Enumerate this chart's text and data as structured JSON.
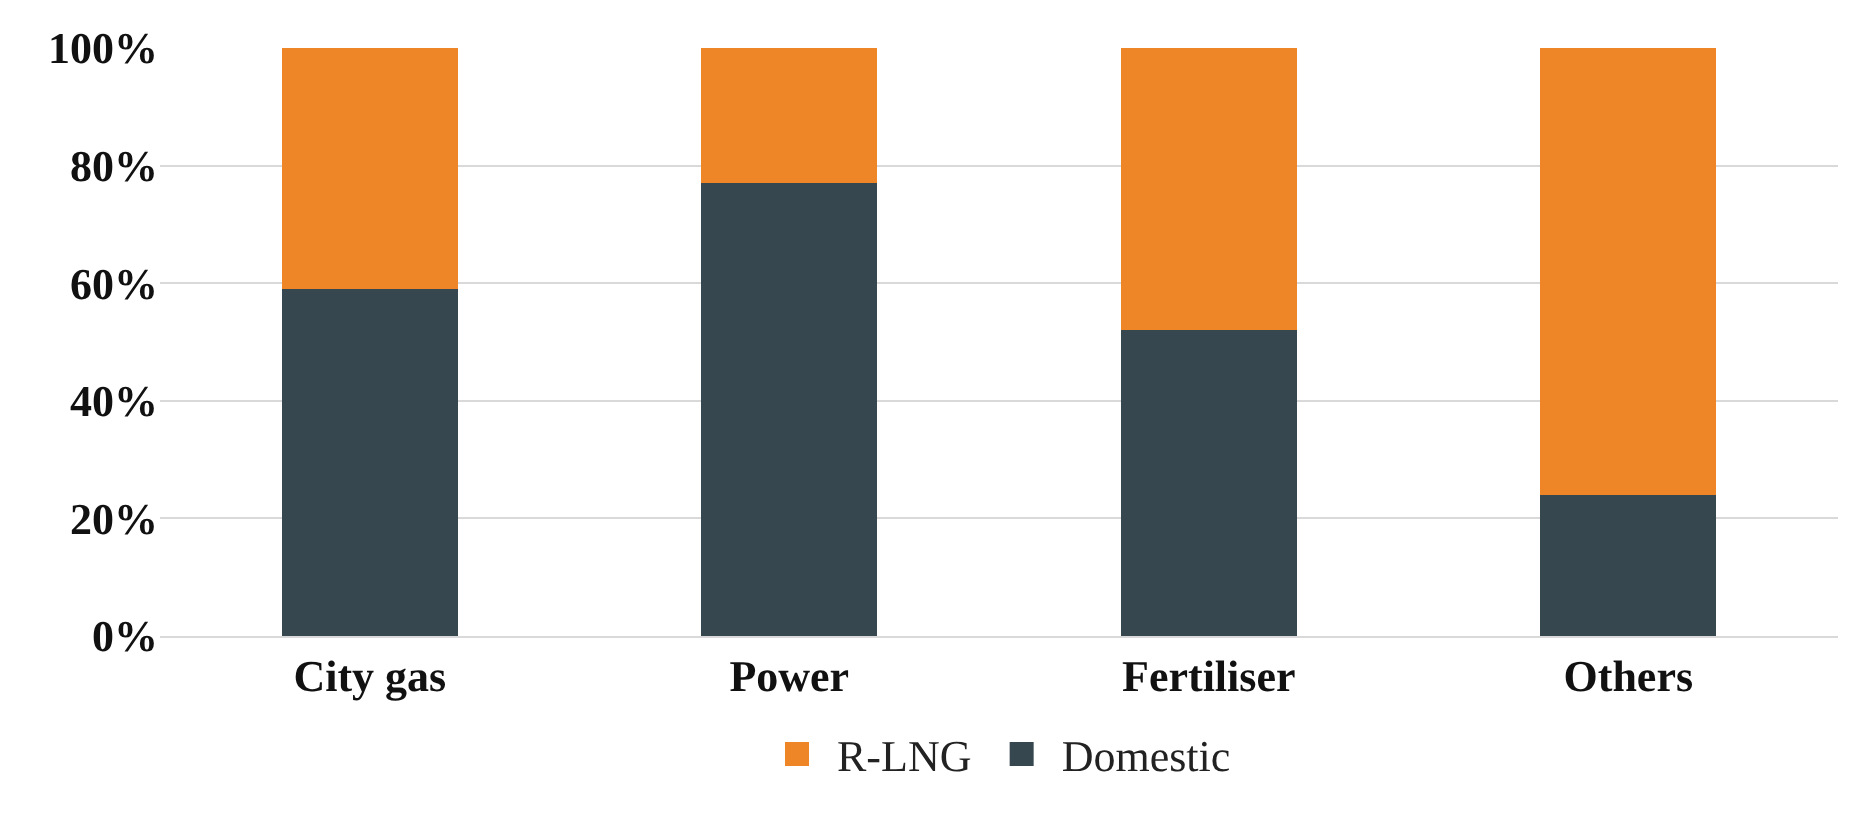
{
  "chart_data": {
    "type": "bar",
    "stacked": true,
    "categories": [
      "City gas",
      "Power",
      "Fertiliser",
      "Others"
    ],
    "series": [
      {
        "name": "Domestic",
        "color": "#37474f",
        "values": [
          59,
          77,
          52,
          24
        ]
      },
      {
        "name": "R-LNG",
        "color": "#ee8627",
        "values": [
          41,
          23,
          48,
          76
        ]
      }
    ],
    "ylim": [
      0,
      100
    ],
    "yticks": [
      {
        "value": 0,
        "label": "0%"
      },
      {
        "value": 20,
        "label": "20%"
      },
      {
        "value": 40,
        "label": "40%"
      },
      {
        "value": 60,
        "label": "60%"
      },
      {
        "value": 80,
        "label": "80%"
      },
      {
        "value": 100,
        "label": "100%"
      }
    ],
    "grid": "y",
    "legend": "bottom"
  }
}
